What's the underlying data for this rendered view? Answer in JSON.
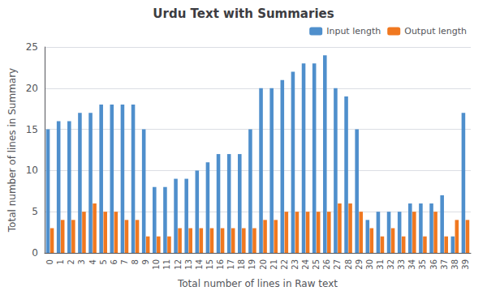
{
  "chart_data": {
    "type": "bar",
    "title": "Urdu Text with Summaries",
    "xlabel": "Total number of lines in Raw text",
    "ylabel": "Total number of lines in Summary",
    "categories": [
      "0",
      "1",
      "2",
      "3",
      "4",
      "5",
      "6",
      "7",
      "8",
      "9",
      "10",
      "11",
      "12",
      "13",
      "14",
      "15",
      "16",
      "17",
      "18",
      "19",
      "20",
      "21",
      "22",
      "23",
      "24",
      "25",
      "26",
      "27",
      "28",
      "29",
      "30",
      "31",
      "32",
      "33",
      "34",
      "35",
      "36",
      "37",
      "38",
      "39"
    ],
    "series": [
      {
        "name": "Input length",
        "color": "#4f8fcc",
        "values": [
          15,
          16,
          16,
          17,
          17,
          18,
          18,
          18,
          18,
          15,
          8,
          8,
          9,
          9,
          10,
          11,
          12,
          12,
          12,
          15,
          20,
          20,
          21,
          22,
          23,
          23,
          24,
          20,
          19,
          15,
          4,
          5,
          5,
          5,
          6,
          6,
          6,
          7,
          2,
          17
        ]
      },
      {
        "name": "Output length",
        "color": "#f07820",
        "values": [
          3,
          4,
          4,
          5,
          6,
          5,
          5,
          4,
          4,
          2,
          2,
          2,
          3,
          3,
          3,
          3,
          3,
          3,
          3,
          3,
          4,
          4,
          5,
          5,
          5,
          5,
          5,
          6,
          6,
          5,
          3,
          2,
          3,
          2,
          5,
          2,
          5,
          2,
          4,
          4
        ]
      }
    ],
    "ylim": [
      0,
      25
    ],
    "yticks": [
      0,
      5,
      10,
      15,
      20,
      25
    ],
    "grid": true,
    "legend": "upper right"
  }
}
